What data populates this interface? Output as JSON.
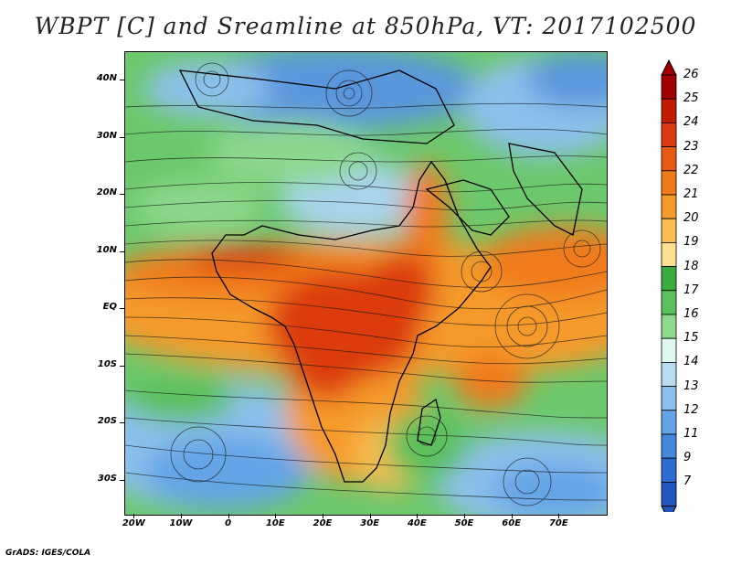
{
  "title": "WBPT [C] and Sreamline at 850hPa, VT: 2017102500",
  "footer": "GrADS: IGES/COLA",
  "map": {
    "lat_labels": [
      "40N",
      "30N",
      "20N",
      "10N",
      "EQ",
      "10S",
      "20S",
      "30S"
    ],
    "lat_values": [
      40,
      30,
      20,
      10,
      0,
      -10,
      -20,
      -30
    ],
    "lon_labels": [
      "20W",
      "10W",
      "0",
      "10E",
      "20E",
      "30E",
      "40E",
      "50E",
      "60E",
      "70E"
    ],
    "lon_values": [
      -20,
      -10,
      0,
      10,
      20,
      30,
      40,
      50,
      60,
      70
    ],
    "lat_range": [
      -36,
      45
    ],
    "lon_range": [
      -22,
      80
    ]
  },
  "colorbar": {
    "labels": [
      "26",
      "25",
      "24",
      "23",
      "22",
      "21",
      "20",
      "19",
      "18",
      "17",
      "16",
      "15",
      "14",
      "13",
      "12",
      "11",
      "9",
      "7"
    ],
    "colors": [
      "#a00000",
      "#c01a00",
      "#dc3a10",
      "#e85a14",
      "#f07a1a",
      "#f59a2a",
      "#f8bc50",
      "#fde090",
      "#3caa3c",
      "#5cc05c",
      "#8cd88c",
      "#e0f8f0",
      "#b8dcf0",
      "#8cc0ec",
      "#64a4e6",
      "#4488dc",
      "#2e6cd0",
      "#1f56c0"
    ]
  }
}
